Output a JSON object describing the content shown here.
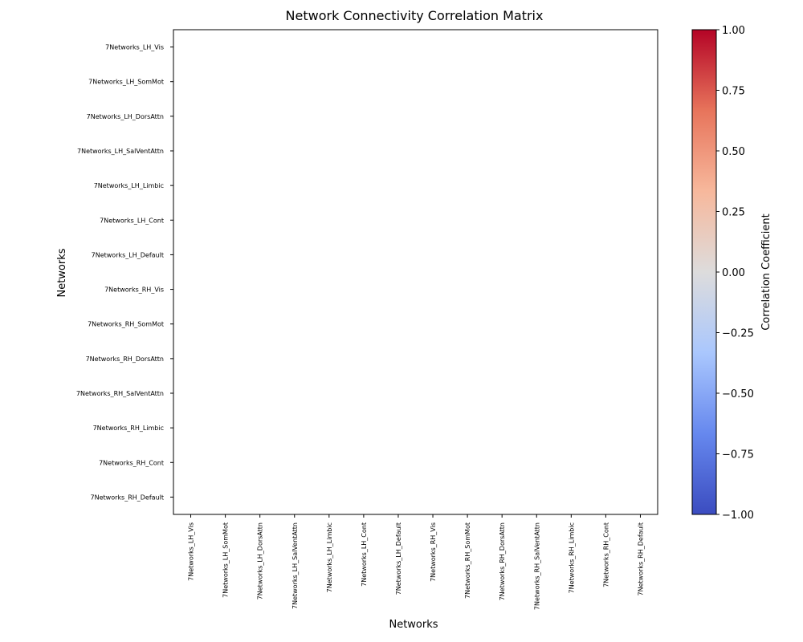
{
  "chart_data": {
    "type": "heatmap",
    "title": "Network Connectivity Correlation Matrix",
    "xlabel": "Networks",
    "ylabel": "Networks",
    "x_categories": [
      "7Networks_LH_Vis",
      "7Networks_LH_SomMot",
      "7Networks_LH_DorsAttn",
      "7Networks_LH_SalVentAttn",
      "7Networks_LH_Limbic",
      "7Networks_LH_Cont",
      "7Networks_LH_Default",
      "7Networks_RH_Vis",
      "7Networks_RH_SomMot",
      "7Networks_RH_DorsAttn",
      "7Networks_RH_SalVentAttn",
      "7Networks_RH_Limbic",
      "7Networks_RH_Cont",
      "7Networks_RH_Default"
    ],
    "y_categories": [
      "7Networks_LH_Vis",
      "7Networks_LH_SomMot",
      "7Networks_LH_DorsAttn",
      "7Networks_LH_SalVentAttn",
      "7Networks_LH_Limbic",
      "7Networks_LH_Cont",
      "7Networks_LH_Default",
      "7Networks_RH_Vis",
      "7Networks_RH_SomMot",
      "7Networks_RH_DorsAttn",
      "7Networks_RH_SalVentAttn",
      "7Networks_RH_Limbic",
      "7Networks_RH_Cont",
      "7Networks_RH_Default"
    ],
    "values": [],
    "colorbar": {
      "label": "Correlation Coefficient",
      "range": [
        -1.0,
        1.0
      ],
      "ticks": [
        "−1.00",
        "−0.75",
        "−0.50",
        "−0.25",
        "0.00",
        "0.25",
        "0.50",
        "0.75",
        "1.00"
      ],
      "tick_values": [
        -1.0,
        -0.75,
        -0.5,
        -0.25,
        0.0,
        0.25,
        0.5,
        0.75,
        1.0
      ],
      "colormap": "coolwarm",
      "color_stops": [
        "#3b4cc0",
        "#6688ee",
        "#aac7fd",
        "#dddcdc",
        "#f7b89c",
        "#e7745b",
        "#b40426"
      ]
    },
    "grid": false
  }
}
